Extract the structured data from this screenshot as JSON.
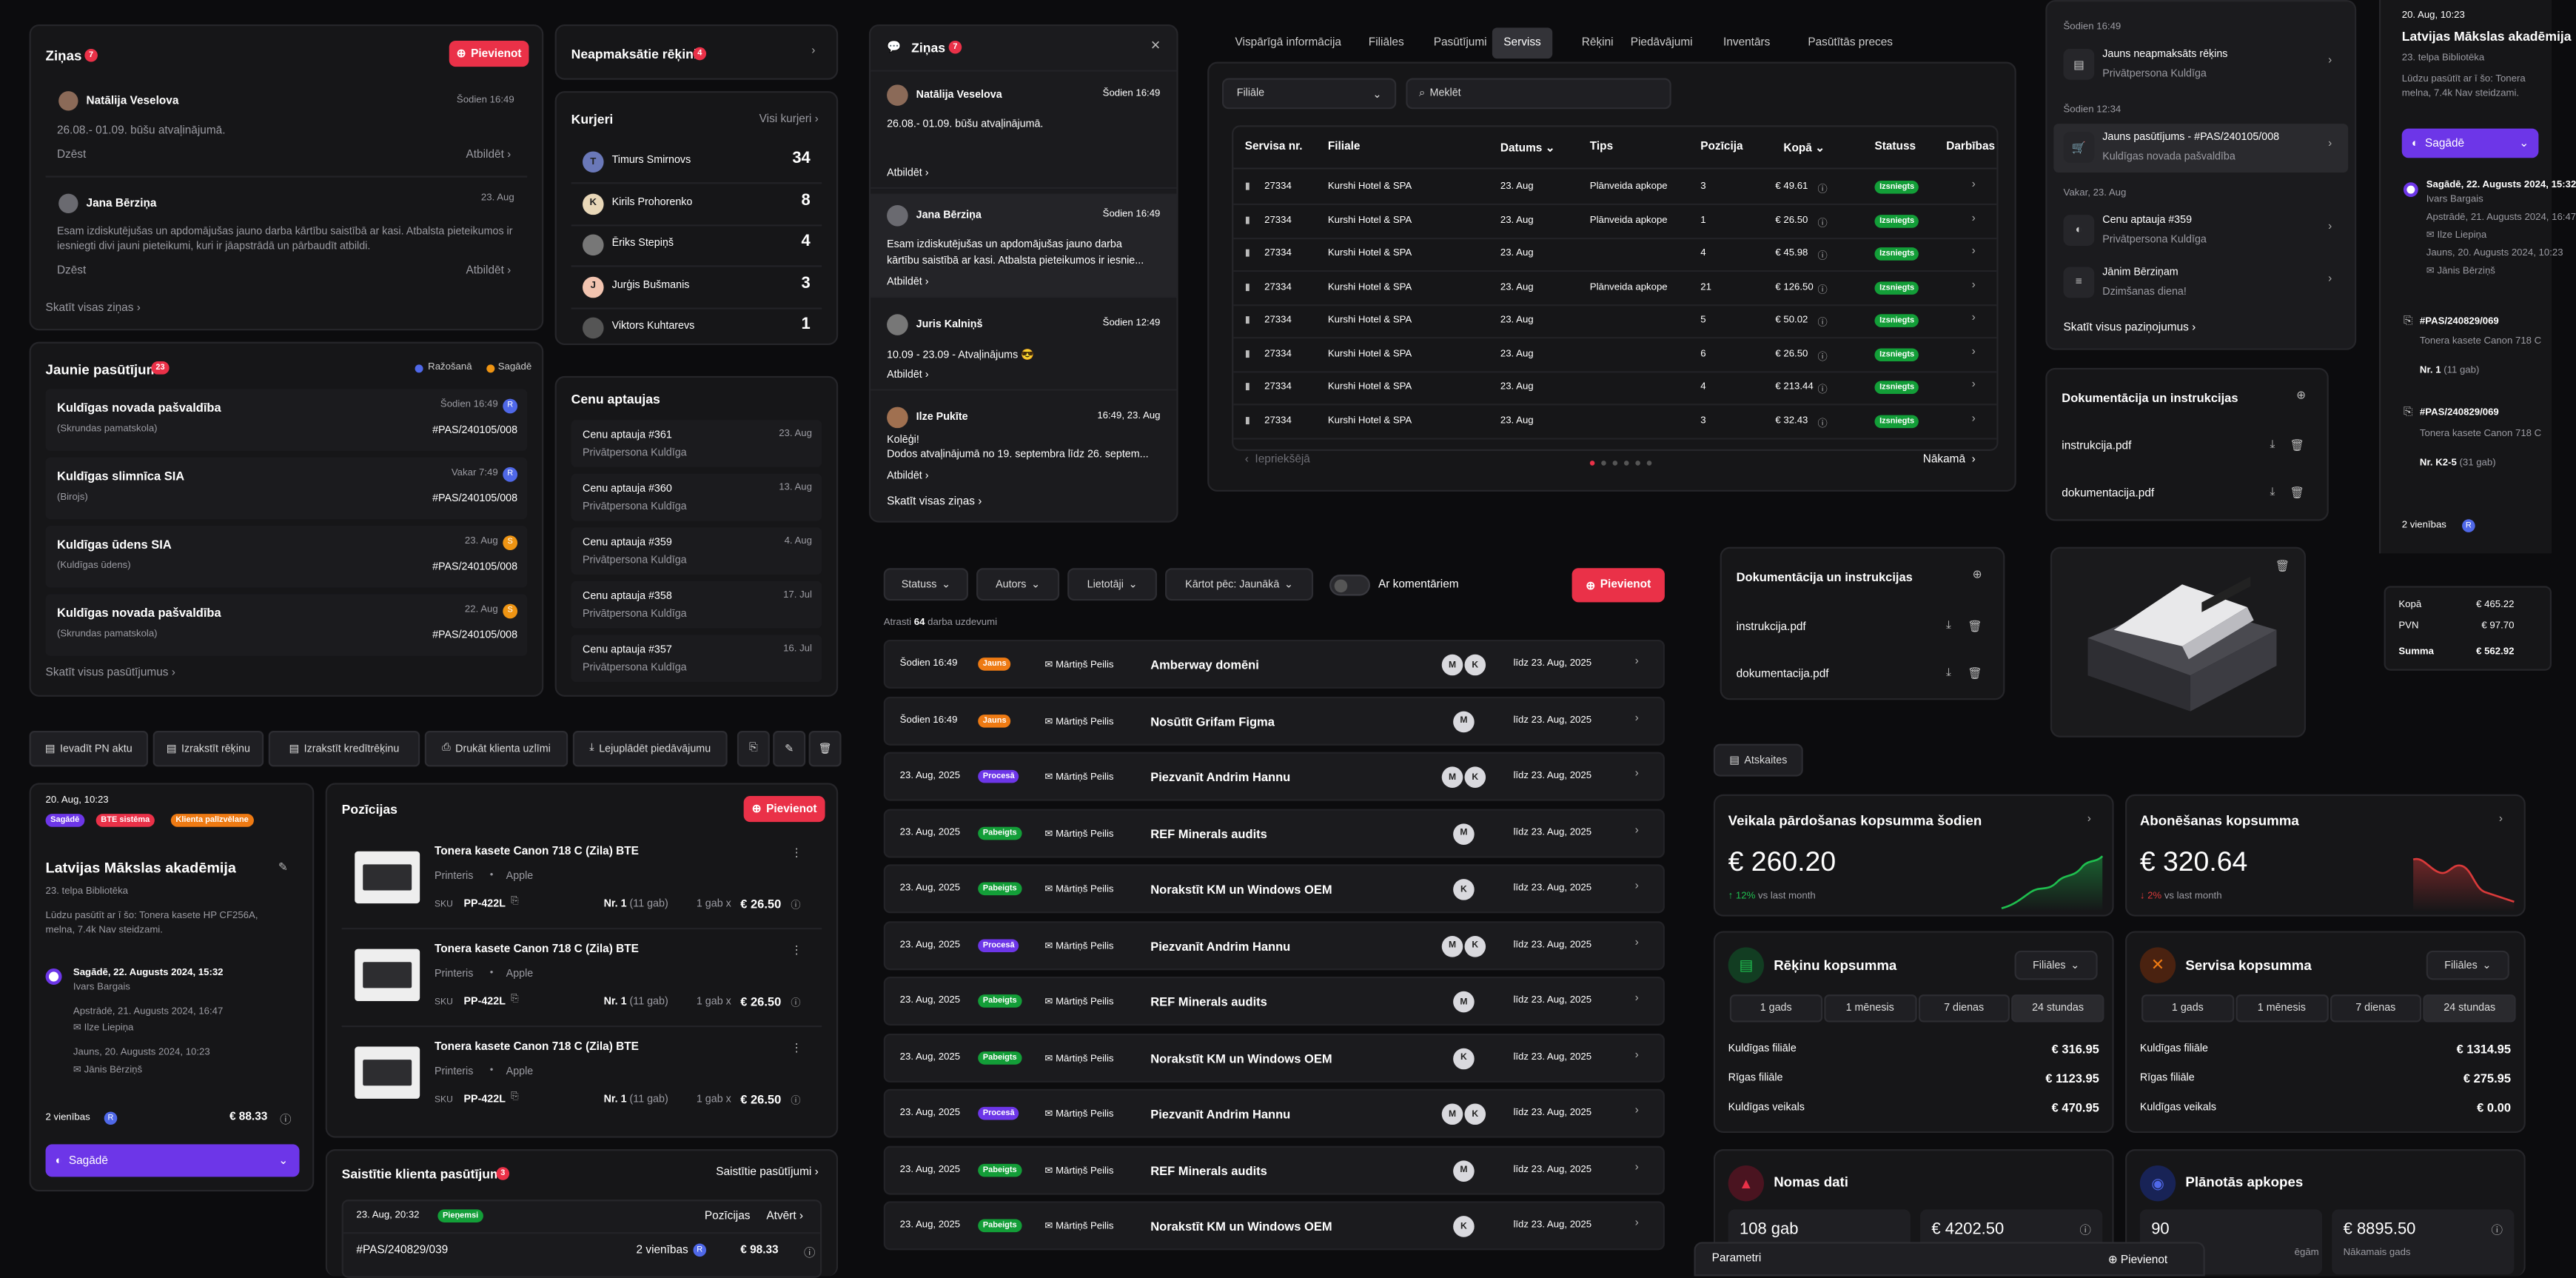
{
  "zinas": {
    "title": "Ziņas",
    "count": "7",
    "add": "Pievienot",
    "items": [
      {
        "name": "Natālija Veselova",
        "time": "Šodien 16:49",
        "text": "26.08.- 01.09. būšu atvaļinājumā.",
        "a": "Dzēst",
        "b": "Atbildēt"
      },
      {
        "name": "Jana Bērziņa",
        "time": "23. Aug",
        "text": "Esam izdiskutējušas un apdomājušas jauno darba kārtību saistībā ar kasi. Atbalsta pieteikumos ir iesniegti divi jauni pieteikumi, kuri ir jāapstrādā un pārbaudīt atbildi.",
        "a": "Dzēst",
        "b": "Atbildēt"
      }
    ],
    "all": "Skatīt visas ziņas"
  },
  "unpaid": {
    "title": "Neapmaksātie rēķini",
    "count": "4"
  },
  "kurjeri": {
    "title": "Kurjeri",
    "all": "Visi kurjeri",
    "items": [
      {
        "init": "T",
        "name": "Timurs Smirnovs",
        "n": "34"
      },
      {
        "init": "K",
        "name": "Kirils Prohorenko",
        "n": "8"
      },
      {
        "init": "",
        "name": "Ēriks Stepiņš",
        "n": "4"
      },
      {
        "init": "J",
        "name": "Jurģis Bušmanis",
        "n": "3"
      },
      {
        "init": "",
        "name": "Viktors Kuhtarevs",
        "n": "1"
      }
    ]
  },
  "jaunie": {
    "title": "Jaunie pasūtījumi",
    "count": "23",
    "leg1": "Ražošanā",
    "leg2": "Sagādē",
    "items": [
      {
        "name": "Kuldīgas novada pašvaldība",
        "sub": "(Skrundas pamatskola)",
        "time": "Šodien 16:49",
        "id": "#PAS/240105/008",
        "c": "#4f68e8",
        "l": "R"
      },
      {
        "name": "Kuldīgas slimnīca SIA",
        "sub": "(Birojs)",
        "time": "Vakar 7:49",
        "id": "#PAS/240105/008",
        "c": "#4f68e8",
        "l": "R"
      },
      {
        "name": "Kuldīgas ūdens SIA",
        "sub": "(Kuldīgas ūdens)",
        "time": "23. Aug",
        "id": "#PAS/240105/008",
        "c": "#ee9413",
        "l": "S"
      },
      {
        "name": "Kuldīgas novada pašvaldība",
        "sub": "(Skrundas pamatskola)",
        "time": "22. Aug",
        "id": "#PAS/240105/008",
        "c": "#ee9413",
        "l": "S"
      }
    ],
    "all": "Skatīt visus pasūtījumus"
  },
  "cenu": {
    "title": "Cenu aptaujas",
    "items": [
      {
        "name": "Cenu aptauja #361",
        "sub": "Privātpersona Kuldīga",
        "d": "23. Aug"
      },
      {
        "name": "Cenu aptauja #360",
        "sub": "Privātpersona Kuldīga",
        "d": "13. Aug"
      },
      {
        "name": "Cenu aptauja #359",
        "sub": "Privātpersona Kuldīga",
        "d": "4. Aug"
      },
      {
        "name": "Cenu aptauja #358",
        "sub": "Privātpersona Kuldīga",
        "d": "17. Jul"
      },
      {
        "name": "Cenu aptauja #357",
        "sub": "Privātpersona Kuldīga",
        "d": "16. Jul"
      }
    ]
  },
  "zpop": {
    "title": "Ziņas",
    "count": "7",
    "items": [
      {
        "name": "Natālija Veselova",
        "time": "Šodien 16:49",
        "text": "26.08.- 01.09. būšu atvaļinājumā.",
        "text2": "",
        "b": "Atbildēt"
      },
      {
        "name": "Jana Bērziņa",
        "time": "Šodien 16:49",
        "text": "Esam izdiskutējušas un apdomājušas jauno darba",
        "text2": "kārtību saistībā ar kasi. Atbalsta pieteikumos ir iesnie...",
        "b": "Atbildēt"
      },
      {
        "name": "Juris Kalniņš",
        "time": "Šodien 12:49",
        "text": "10.09 - 23.09 - Atvaļinājums 😎",
        "text2": "",
        "b": "Atbildēt"
      },
      {
        "name": "Ilze Pukīte",
        "time": "16:49, 23. Aug",
        "text": "Kolēģi!",
        "text2": "Dodos atvaļinājumā no 19. septembra līdz 26. septem...",
        "b": "Atbildēt"
      }
    ],
    "all": "Skatīt visas ziņas"
  },
  "tabs": [
    "Vispārīgā informācija",
    "Filiāles",
    "Pasūtījumi",
    "Serviss",
    "Rēķini",
    "Piedāvājumi",
    "Inventārs",
    "Pasūtītās preces"
  ],
  "svc": {
    "filter": "Filiāle",
    "search": "Meklēt",
    "cols": [
      "Servisa nr.",
      "Filiale",
      "Datums",
      "Tips",
      "Pozīcija",
      "Kopā",
      "Statuss",
      "Darbības"
    ],
    "rows": [
      [
        "27334",
        "Kurshi Hotel & SPA",
        "23. Aug",
        "Plānveida apkope",
        "3",
        "€ 49.61",
        "Izsniegts"
      ],
      [
        "27334",
        "Kurshi Hotel & SPA",
        "23. Aug",
        "Plānveida apkope",
        "1",
        "€ 26.50",
        "Izsniegts"
      ],
      [
        "27334",
        "Kurshi Hotel & SPA",
        "23. Aug",
        "",
        "4",
        "€ 45.98",
        "Izsniegts"
      ],
      [
        "27334",
        "Kurshi Hotel & SPA",
        "23. Aug",
        "Plānveida apkope",
        "21",
        "€ 126.50",
        "Izsniegts"
      ],
      [
        "27334",
        "Kurshi Hotel & SPA",
        "23. Aug",
        "",
        "5",
        "€ 50.02",
        "Izsniegts"
      ],
      [
        "27334",
        "Kurshi Hotel & SPA",
        "23. Aug",
        "",
        "6",
        "€ 26.50",
        "Izsniegts"
      ],
      [
        "27334",
        "Kurshi Hotel & SPA",
        "23. Aug",
        "",
        "4",
        "€ 213.44",
        "Izsniegts"
      ],
      [
        "27334",
        "Kurshi Hotel & SPA",
        "23. Aug",
        "",
        "3",
        "€ 32.43",
        "Izsniegts"
      ]
    ],
    "prev": "Iepriekšējā",
    "next": "Nākamā"
  },
  "notif": {
    "items": [
      {
        "hdr": "Šodien 16:49",
        "title": "Jauns neapmaksāts rēķins",
        "sub": "Privātpersona Kuldīga"
      },
      {
        "hdr": "Šodien 12:34",
        "title": "Jauns pasūtījums - #PAS/240105/008",
        "sub": "Kuldīgas novada pašvaldība"
      },
      {
        "hdr": "Vakar, 23. Aug",
        "title": "Cenu aptauja #359",
        "sub": "Privātpersona Kuldīga"
      },
      {
        "hdr": "",
        "title": "Jānim Bērziņam",
        "sub": "Dzimšanas diena!"
      }
    ],
    "all": "Skatīt visus paziņojumus"
  },
  "docs": {
    "title": "Dokumentācija un instrukcijas",
    "files": [
      "instrukcija.pdf",
      "dokumentacija.pdf"
    ]
  },
  "rside": {
    "date": "20. Aug, 10:23",
    "name": "Latvijas Mākslas akadēmija",
    "sub": "23. telpa Bibliotēka",
    "desc1": "Lūdzu pasūtīt ar ī šo: Tonera",
    "desc2": "melna, 7.4k Nav steidzami.",
    "btn": "Sagādē",
    "h1": "Sagādē, 22. Augusts 2024, 15:32",
    "h1b": "Ivars Bargais",
    "h2": "Apstrādē, 21. Augusts 2024, 16:47",
    "h2b": "Ilze Liepiņa",
    "h3": "Jauns, 20. Augusts 2024, 10:23",
    "h3b": "Jānis Bērziņš",
    "o1": "#PAS/240829/069",
    "o1s": "Tonera kasete Canon 718 C",
    "o1q": "Nr. 1",
    "o1qs": "(11 gab)",
    "o2": "#PAS/240829/069",
    "o2s": "Tonera kasete Canon 718 C",
    "o2q": "Nr. K2-5",
    "o2qs": "(31 gab)",
    "units": "2 vienības"
  },
  "totals": {
    "rows": [
      [
        "Kopā",
        "€ 465.22"
      ],
      [
        "PVN",
        "€ 97.70"
      ],
      [
        "Summa",
        "€ 562.92"
      ]
    ]
  },
  "tasks": {
    "filters": [
      "Statuss",
      "Autors",
      "Lietotāji",
      "Kārtot pēc: Jaunākā"
    ],
    "toggle": "Ar komentāriem",
    "add": "Pievienot",
    "found_pre": "Atrasti",
    "found_n": "64",
    "found_post": "darba uzdevumi",
    "rows": [
      {
        "t": "Šodien 16:49",
        "s": "Jauns",
        "c": "orange",
        "who": "Mārtiņš Peilis",
        "name": "Amberway domēni",
        "m": [
          "M",
          "K"
        ],
        "d": "līdz 23. Aug, 2025"
      },
      {
        "t": "Šodien 16:49",
        "s": "Jauns",
        "c": "orange",
        "who": "Mārtiņš Peilis",
        "name": "Nosūtīt Grifam Figma",
        "m": [
          "M"
        ],
        "d": "līdz 23. Aug, 2025"
      },
      {
        "t": "23. Aug, 2025",
        "s": "Procesā",
        "c": "purple",
        "who": "Mārtiņš Peilis",
        "name": "Piezvanīt Andrim Hannu",
        "m": [
          "M",
          "K"
        ],
        "d": "līdz 23. Aug, 2025"
      },
      {
        "t": "23. Aug, 2025",
        "s": "Pabeigts",
        "c": "green",
        "who": "Mārtiņš Peilis",
        "name": "REF Minerals audits",
        "m": [
          "M"
        ],
        "d": "līdz 23. Aug, 2025"
      },
      {
        "t": "23. Aug, 2025",
        "s": "Pabeigts",
        "c": "green",
        "who": "Mārtiņš Peilis",
        "name": "Norakstīt KM un Windows OEM",
        "m": [
          "K"
        ],
        "d": "līdz 23. Aug, 2025"
      },
      {
        "t": "23. Aug, 2025",
        "s": "Procesā",
        "c": "purple",
        "who": "Mārtiņš Peilis",
        "name": "Piezvanīt Andrim Hannu",
        "m": [
          "M",
          "K"
        ],
        "d": "līdz 23. Aug, 2025"
      },
      {
        "t": "23. Aug, 2025",
        "s": "Pabeigts",
        "c": "green",
        "who": "Mārtiņš Peilis",
        "name": "REF Minerals audits",
        "m": [
          "M"
        ],
        "d": "līdz 23. Aug, 2025"
      },
      {
        "t": "23. Aug, 2025",
        "s": "Pabeigts",
        "c": "green",
        "who": "Mārtiņš Peilis",
        "name": "Norakstīt KM un Windows OEM",
        "m": [
          "K"
        ],
        "d": "līdz 23. Aug, 2025"
      },
      {
        "t": "23. Aug, 2025",
        "s": "Procesā",
        "c": "purple",
        "who": "Mārtiņš Peilis",
        "name": "Piezvanīt Andrim Hannu",
        "m": [
          "M",
          "K"
        ],
        "d": "līdz 23. Aug, 2025"
      },
      {
        "t": "23. Aug, 2025",
        "s": "Pabeigts",
        "c": "green",
        "who": "Mārtiņš Peilis",
        "name": "REF Minerals audits",
        "m": [
          "M"
        ],
        "d": "līdz 23. Aug, 2025"
      },
      {
        "t": "23. Aug, 2025",
        "s": "Pabeigts",
        "c": "green",
        "who": "Mārtiņš Peilis",
        "name": "Norakstīt KM un Windows OEM",
        "m": [
          "K"
        ],
        "d": "līdz 23. Aug, 2025"
      }
    ]
  },
  "toolbar": [
    "Ievadīt PN aktu",
    "Izrakstīt rēķinu",
    "Izrakstīt kredītrēķinu",
    "Drukāt klienta uzlīmi",
    "Lejuplādēt piedāvājumu"
  ],
  "order": {
    "date": "20. Aug, 10:23",
    "tags": [
      "Sagādē",
      "BTE sistēma",
      "Klienta palīzvēlane"
    ],
    "name": "Latvijas Mākslas akadēmija",
    "sub": "23. telpa Bibliotēka",
    "desc1": "Lūdzu pasūtīt ar ī šo: Tonera kasete HP CF256A,",
    "desc2": "melna, 7.4k Nav steidzami.",
    "h1": "Sagādē, 22. Augusts 2024, 15:32",
    "h1b": "Ivars Bargais",
    "h2": "Apstrādē, 21. Augusts 2024, 16:47",
    "h2b": "Ilze Liepiņa",
    "h3": "Jauns, 20. Augusts 2024, 10:23",
    "h3b": "Jānis Bērziņš",
    "units": "2 vienības",
    "sum": "€ 88.33",
    "btn": "Sagādē"
  },
  "poz": {
    "title": "Pozīcijas",
    "add": "Pievienot",
    "items": [
      {
        "name": "Tonera kasete Canon 718 C (Zila) BTE",
        "cat": "Printeris",
        "brand": "Apple",
        "sku": "SKU",
        "code": "PP-422L",
        "nr": "Nr. 1",
        "q": "(11 gab)",
        "u": "1 gab x",
        "p": "€ 26.50"
      },
      {
        "name": "Tonera kasete Canon 718 C (Zila) BTE",
        "cat": "Printeris",
        "brand": "Apple",
        "sku": "SKU",
        "code": "PP-422L",
        "nr": "Nr. 1",
        "q": "(11 gab)",
        "u": "1 gab x",
        "p": "€ 26.50"
      },
      {
        "name": "Tonera kasete Canon 718 C (Zila) BTE",
        "cat": "Printeris",
        "brand": "Apple",
        "sku": "SKU",
        "code": "PP-422L",
        "nr": "Nr. 1",
        "q": "(11 gab)",
        "u": "1 gab x",
        "p": "€ 26.50"
      }
    ]
  },
  "related": {
    "title": "Saistītie klienta pasūtījumi",
    "count": "3",
    "link": "Saistītie pasūtījumi",
    "date": "23. Aug, 20:32",
    "status": "Pieņemsi",
    "c1": "Pozīcijas",
    "c2": "Atvērt",
    "id": "#PAS/240829/039",
    "units": "2 vienības",
    "sum": "€ 98.33"
  },
  "reports": {
    "tab": "Atskaites"
  },
  "sales": {
    "title": "Veikala pārdošanas kopsumma šodien",
    "value": "€ 260.20",
    "pct": "12%",
    "vs": "vs last month",
    "color": "#1fbf4f"
  },
  "subs": {
    "title": "Abonēšanas kopsumma",
    "value": "€ 320.64",
    "pct": "2%",
    "vs": "vs last month",
    "color": "#d93a3a"
  },
  "inv": {
    "title": "Rēķinu kopsumma",
    "sel": "Filiāles",
    "periods": [
      "1 gads",
      "1 mēnesis",
      "7 dienas",
      "24 stundas"
    ],
    "rows": [
      [
        "Kuldīgas filiāle",
        "€ 316.95"
      ],
      [
        "Rīgas filiāle",
        "€ 1123.95"
      ],
      [
        "Kuldīgas veikals",
        "€ 470.95"
      ]
    ]
  },
  "serv": {
    "title": "Servisa kopsumma",
    "sel": "Filiāles",
    "periods": [
      "1 gads",
      "1 mēnesis",
      "7 dienas",
      "24 stundas"
    ],
    "rows": [
      [
        "Kuldīgas filiāle",
        "€ 1314.95"
      ],
      [
        "Rīgas filiāle",
        "€ 275.95"
      ],
      [
        "Kuldīgas veikals",
        "€ 0.00"
      ]
    ]
  },
  "nomas": {
    "title": "Nomas dati",
    "v1": "108 gab",
    "v2": "€ 4202.50"
  },
  "plan": {
    "title": "Plānotās apkopes",
    "v1": "90",
    "v2": "€ 8895.50",
    "l1": "ēgām",
    "l2": "Nākamais gads"
  },
  "params": {
    "title": "Parametri",
    "add": "Pievienot"
  }
}
